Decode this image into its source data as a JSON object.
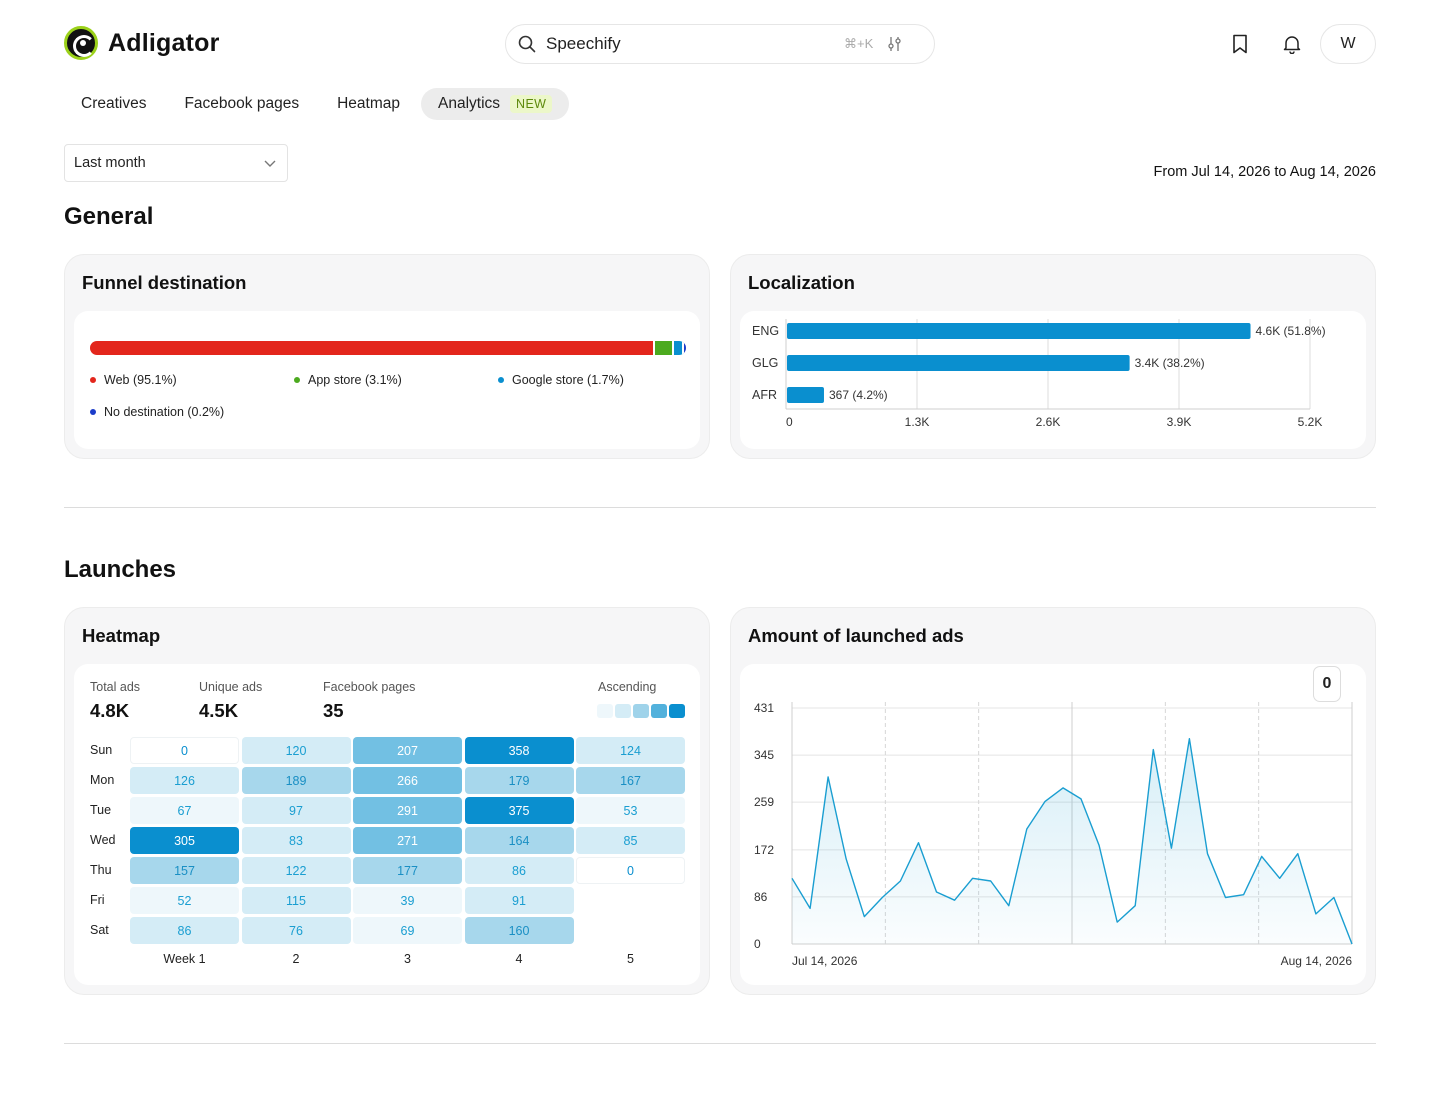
{
  "app": {
    "name": "Adligator"
  },
  "search": {
    "value": "Speechify",
    "placeholder": "Search",
    "shortcut": "⌘+K"
  },
  "header": {
    "avatar_initial": "W"
  },
  "tabs": [
    {
      "label": "Creatives",
      "active": false
    },
    {
      "label": "Facebook pages",
      "active": false
    },
    {
      "label": "Heatmap",
      "active": false
    },
    {
      "label": "Analytics",
      "active": true,
      "badge": "NEW"
    }
  ],
  "filters": {
    "period": "Last month",
    "date_range": "From Jul 14, 2026 to Aug 14, 2026"
  },
  "sections": {
    "general": "General",
    "launches": "Launches"
  },
  "funnel": {
    "title": "Funnel destination",
    "segments": [
      {
        "label": "Web (95.1%)",
        "value": 95.1,
        "color": "#e3261c"
      },
      {
        "label": "App store (3.1%)",
        "value": 3.1,
        "color": "#4caa1f"
      },
      {
        "label": "Google store (1.7%)",
        "value": 1.7,
        "color": "#0a8fcf"
      },
      {
        "label": "No destination (0.2%)",
        "value": 0.2,
        "color": "#1b3cc9"
      }
    ]
  },
  "localization": {
    "title": "Localization",
    "chart_data": {
      "type": "bar",
      "orientation": "horizontal",
      "categories": [
        "ENG",
        "GLG",
        "AFR"
      ],
      "values": [
        4600,
        3400,
        367
      ],
      "data_labels": [
        "4.6K (51.8%)",
        "3.4K (38.2%)",
        "367 (4.2%)"
      ],
      "xlim": [
        0,
        5200
      ],
      "xticks": [
        0,
        1300,
        2600,
        3900,
        5200
      ],
      "xtick_labels": [
        "0",
        "1.3K",
        "2.6K",
        "3.9K",
        "5.2K"
      ],
      "color": "#0a8fcf",
      "grid": "vertical"
    }
  },
  "heatmap": {
    "title": "Heatmap",
    "stats": [
      {
        "label": "Total ads",
        "value": "4.8K"
      },
      {
        "label": "Unique ads",
        "value": "4.5K"
      },
      {
        "label": "Facebook pages",
        "value": "35"
      }
    ],
    "sort_label": "Ascending",
    "days": [
      "Sun",
      "Mon",
      "Tue",
      "Wed",
      "Thu",
      "Fri",
      "Sat"
    ],
    "weeks": [
      "Week 1",
      "2",
      "3",
      "4",
      "5"
    ],
    "grid": [
      [
        0,
        120,
        207,
        358,
        124
      ],
      [
        126,
        189,
        266,
        179,
        167
      ],
      [
        67,
        97,
        291,
        375,
        53
      ],
      [
        305,
        83,
        271,
        164,
        85
      ],
      [
        157,
        122,
        177,
        86,
        0
      ],
      [
        52,
        115,
        39,
        91,
        null
      ],
      [
        86,
        76,
        69,
        160,
        null
      ]
    ]
  },
  "launched": {
    "title": "Amount of launched ads",
    "reset_value": "0",
    "chart_data": {
      "type": "area",
      "x_start_label": "Jul 14, 2026",
      "x_end_label": "Aug 14, 2026",
      "yticks": [
        0,
        86,
        172,
        259,
        345,
        431
      ],
      "ylim": [
        0,
        431
      ],
      "values": [
        120,
        65,
        305,
        155,
        50,
        85,
        115,
        185,
        95,
        80,
        120,
        115,
        70,
        210,
        260,
        285,
        265,
        180,
        40,
        70,
        355,
        175,
        375,
        165,
        85,
        90,
        160,
        120,
        165,
        55,
        85,
        0
      ],
      "color": "#1a9ed1"
    }
  }
}
